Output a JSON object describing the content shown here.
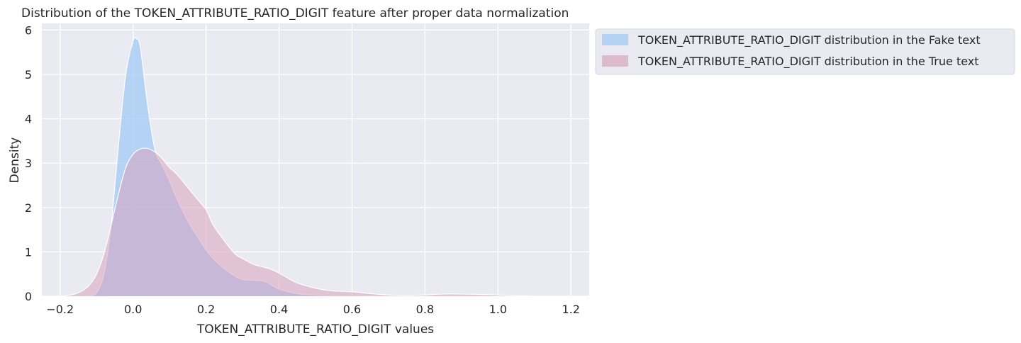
{
  "chart_data": {
    "type": "area",
    "title": "Distribution of the TOKEN_ATTRIBUTE_RATIO_DIGIT feature after proper data normalization",
    "xlabel": "TOKEN_ATTRIBUTE_RATIO_DIGIT values",
    "ylabel": "Density",
    "xlim": [
      -0.25,
      1.25
    ],
    "ylim": [
      0,
      6.15
    ],
    "xticks": [
      -0.2,
      0.0,
      0.2,
      0.4,
      0.6,
      0.8,
      1.0,
      1.2
    ],
    "xtick_labels": [
      "−0.2",
      "0.0",
      "0.2",
      "0.4",
      "0.6",
      "0.8",
      "1.0",
      "1.2"
    ],
    "yticks": [
      0,
      1,
      2,
      3,
      4,
      5,
      6
    ],
    "ytick_labels": [
      "0",
      "1",
      "2",
      "3",
      "4",
      "5",
      "6"
    ],
    "grid": true,
    "legend_position": "outside upper right",
    "series": [
      {
        "name": "TOKEN_ATTRIBUTE_RATIO_DIGIT distribution in the Fake text",
        "color": "#a1c9f4",
        "x": [
          -0.12,
          -0.1,
          -0.08,
          -0.06,
          -0.04,
          -0.02,
          0.0,
          0.01,
          0.02,
          0.04,
          0.06,
          0.08,
          0.1,
          0.12,
          0.15,
          0.18,
          0.2,
          0.22,
          0.25,
          0.28,
          0.3,
          0.32,
          0.35,
          0.37,
          0.4,
          0.45,
          0.5,
          0.55,
          0.6,
          0.65,
          0.7,
          0.75,
          0.8,
          0.9,
          1.0,
          1.1
        ],
        "y": [
          0.0,
          0.08,
          0.5,
          1.6,
          3.4,
          5.0,
          5.75,
          5.8,
          5.6,
          4.3,
          3.3,
          2.95,
          2.6,
          2.2,
          1.7,
          1.3,
          1.05,
          0.85,
          0.62,
          0.45,
          0.38,
          0.36,
          0.35,
          0.3,
          0.16,
          0.06,
          0.03,
          0.02,
          0.02,
          0.01,
          0.0,
          0.0,
          0.0,
          0.0,
          0.0,
          0.0
        ]
      },
      {
        "name": "TOKEN_ATTRIBUTE_RATIO_DIGIT distribution in the True text",
        "color": "#debb9b",
        "x": [
          -0.2,
          -0.18,
          -0.16,
          -0.14,
          -0.12,
          -0.1,
          -0.08,
          -0.06,
          -0.04,
          -0.02,
          0.0,
          0.02,
          0.04,
          0.06,
          0.08,
          0.1,
          0.12,
          0.15,
          0.18,
          0.2,
          0.22,
          0.25,
          0.28,
          0.3,
          0.33,
          0.36,
          0.38,
          0.4,
          0.42,
          0.45,
          0.5,
          0.55,
          0.6,
          0.65,
          0.7,
          0.75,
          0.8,
          0.85,
          0.9,
          0.95,
          1.0,
          1.05,
          1.1
        ],
        "y": [
          0.0,
          0.02,
          0.05,
          0.12,
          0.25,
          0.5,
          0.95,
          1.6,
          2.3,
          2.9,
          3.2,
          3.32,
          3.33,
          3.25,
          3.1,
          2.9,
          2.75,
          2.45,
          2.15,
          1.95,
          1.6,
          1.25,
          0.95,
          0.85,
          0.72,
          0.65,
          0.6,
          0.52,
          0.43,
          0.3,
          0.18,
          0.12,
          0.1,
          0.06,
          0.03,
          0.02,
          0.03,
          0.05,
          0.05,
          0.04,
          0.03,
          0.01,
          0.0
        ]
      }
    ]
  }
}
